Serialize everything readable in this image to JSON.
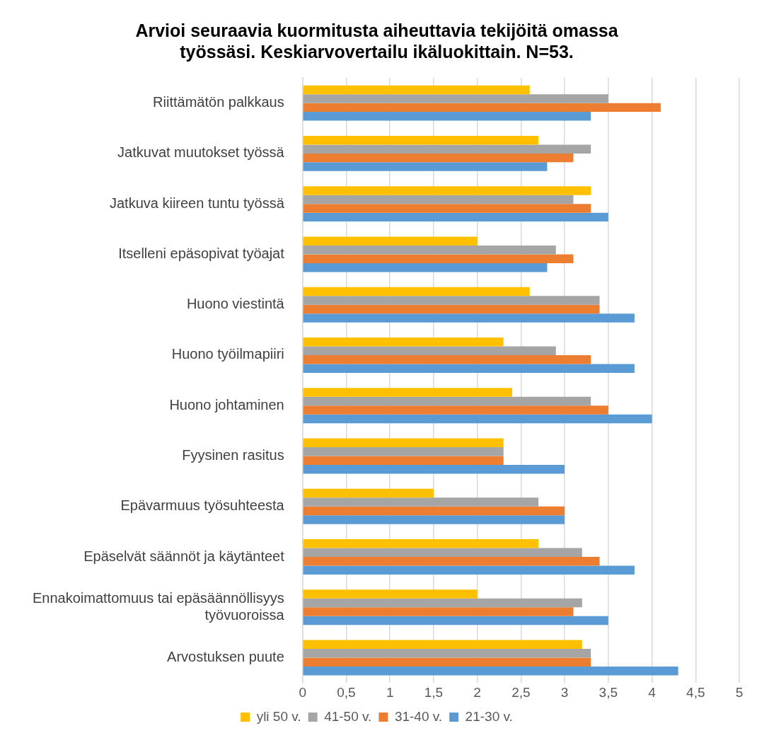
{
  "chart_data": {
    "type": "bar",
    "orientation": "horizontal",
    "title": "Arvioi seuraavia kuormitusta aiheuttavia tekijöitä omassa työssäsi. Keskiarvovertailu ikäluokittain. N=53.",
    "categories": [
      "Riittämätön palkkaus",
      "Jatkuvat muutokset työssä",
      "Jatkuva kiireen tuntu työssä",
      "Itselleni epäsopivat työajat",
      "Huono viestintä",
      "Huono työilmapiiri",
      "Huono johtaminen",
      "Fyysinen rasitus",
      "Epävarmuus työsuhteesta",
      "Epäselvät säännöt ja käytänteet",
      "Ennakoimattomuus tai epäsäännöllisyys työvuoroissa",
      "Arvostuksen puute"
    ],
    "series": [
      {
        "name": "yli 50 v.",
        "color": "#ffc000",
        "values": [
          2.6,
          2.7,
          3.3,
          2.0,
          2.6,
          2.3,
          2.4,
          2.3,
          1.5,
          2.7,
          2.0,
          3.2
        ]
      },
      {
        "name": "41-50 v.",
        "color": "#a5a5a5",
        "values": [
          3.5,
          3.3,
          3.1,
          2.9,
          3.4,
          2.9,
          3.3,
          2.3,
          2.7,
          3.2,
          3.2,
          3.3
        ]
      },
      {
        "name": "31-40 v.",
        "color": "#ed7d31",
        "values": [
          4.1,
          3.1,
          3.3,
          3.1,
          3.4,
          3.3,
          3.5,
          2.3,
          3.0,
          3.4,
          3.1,
          3.3
        ]
      },
      {
        "name": "21-30 v.",
        "color": "#5b9bd5",
        "values": [
          3.3,
          2.8,
          3.5,
          2.8,
          3.8,
          3.8,
          4.0,
          3.0,
          3.0,
          3.8,
          3.5,
          4.3
        ]
      }
    ],
    "xlim": [
      0,
      5
    ],
    "xticks": [
      0,
      {
        "value": 0.5,
        "label": "0,5"
      },
      1,
      {
        "value": 1.5,
        "label": "1,5"
      },
      2,
      {
        "value": 2.5,
        "label": "2,5"
      },
      3,
      {
        "value": 3.5,
        "label": "3,5"
      },
      4,
      {
        "value": 4.5,
        "label": "4,5"
      },
      5
    ],
    "grid": "x",
    "legend": "bottom"
  }
}
